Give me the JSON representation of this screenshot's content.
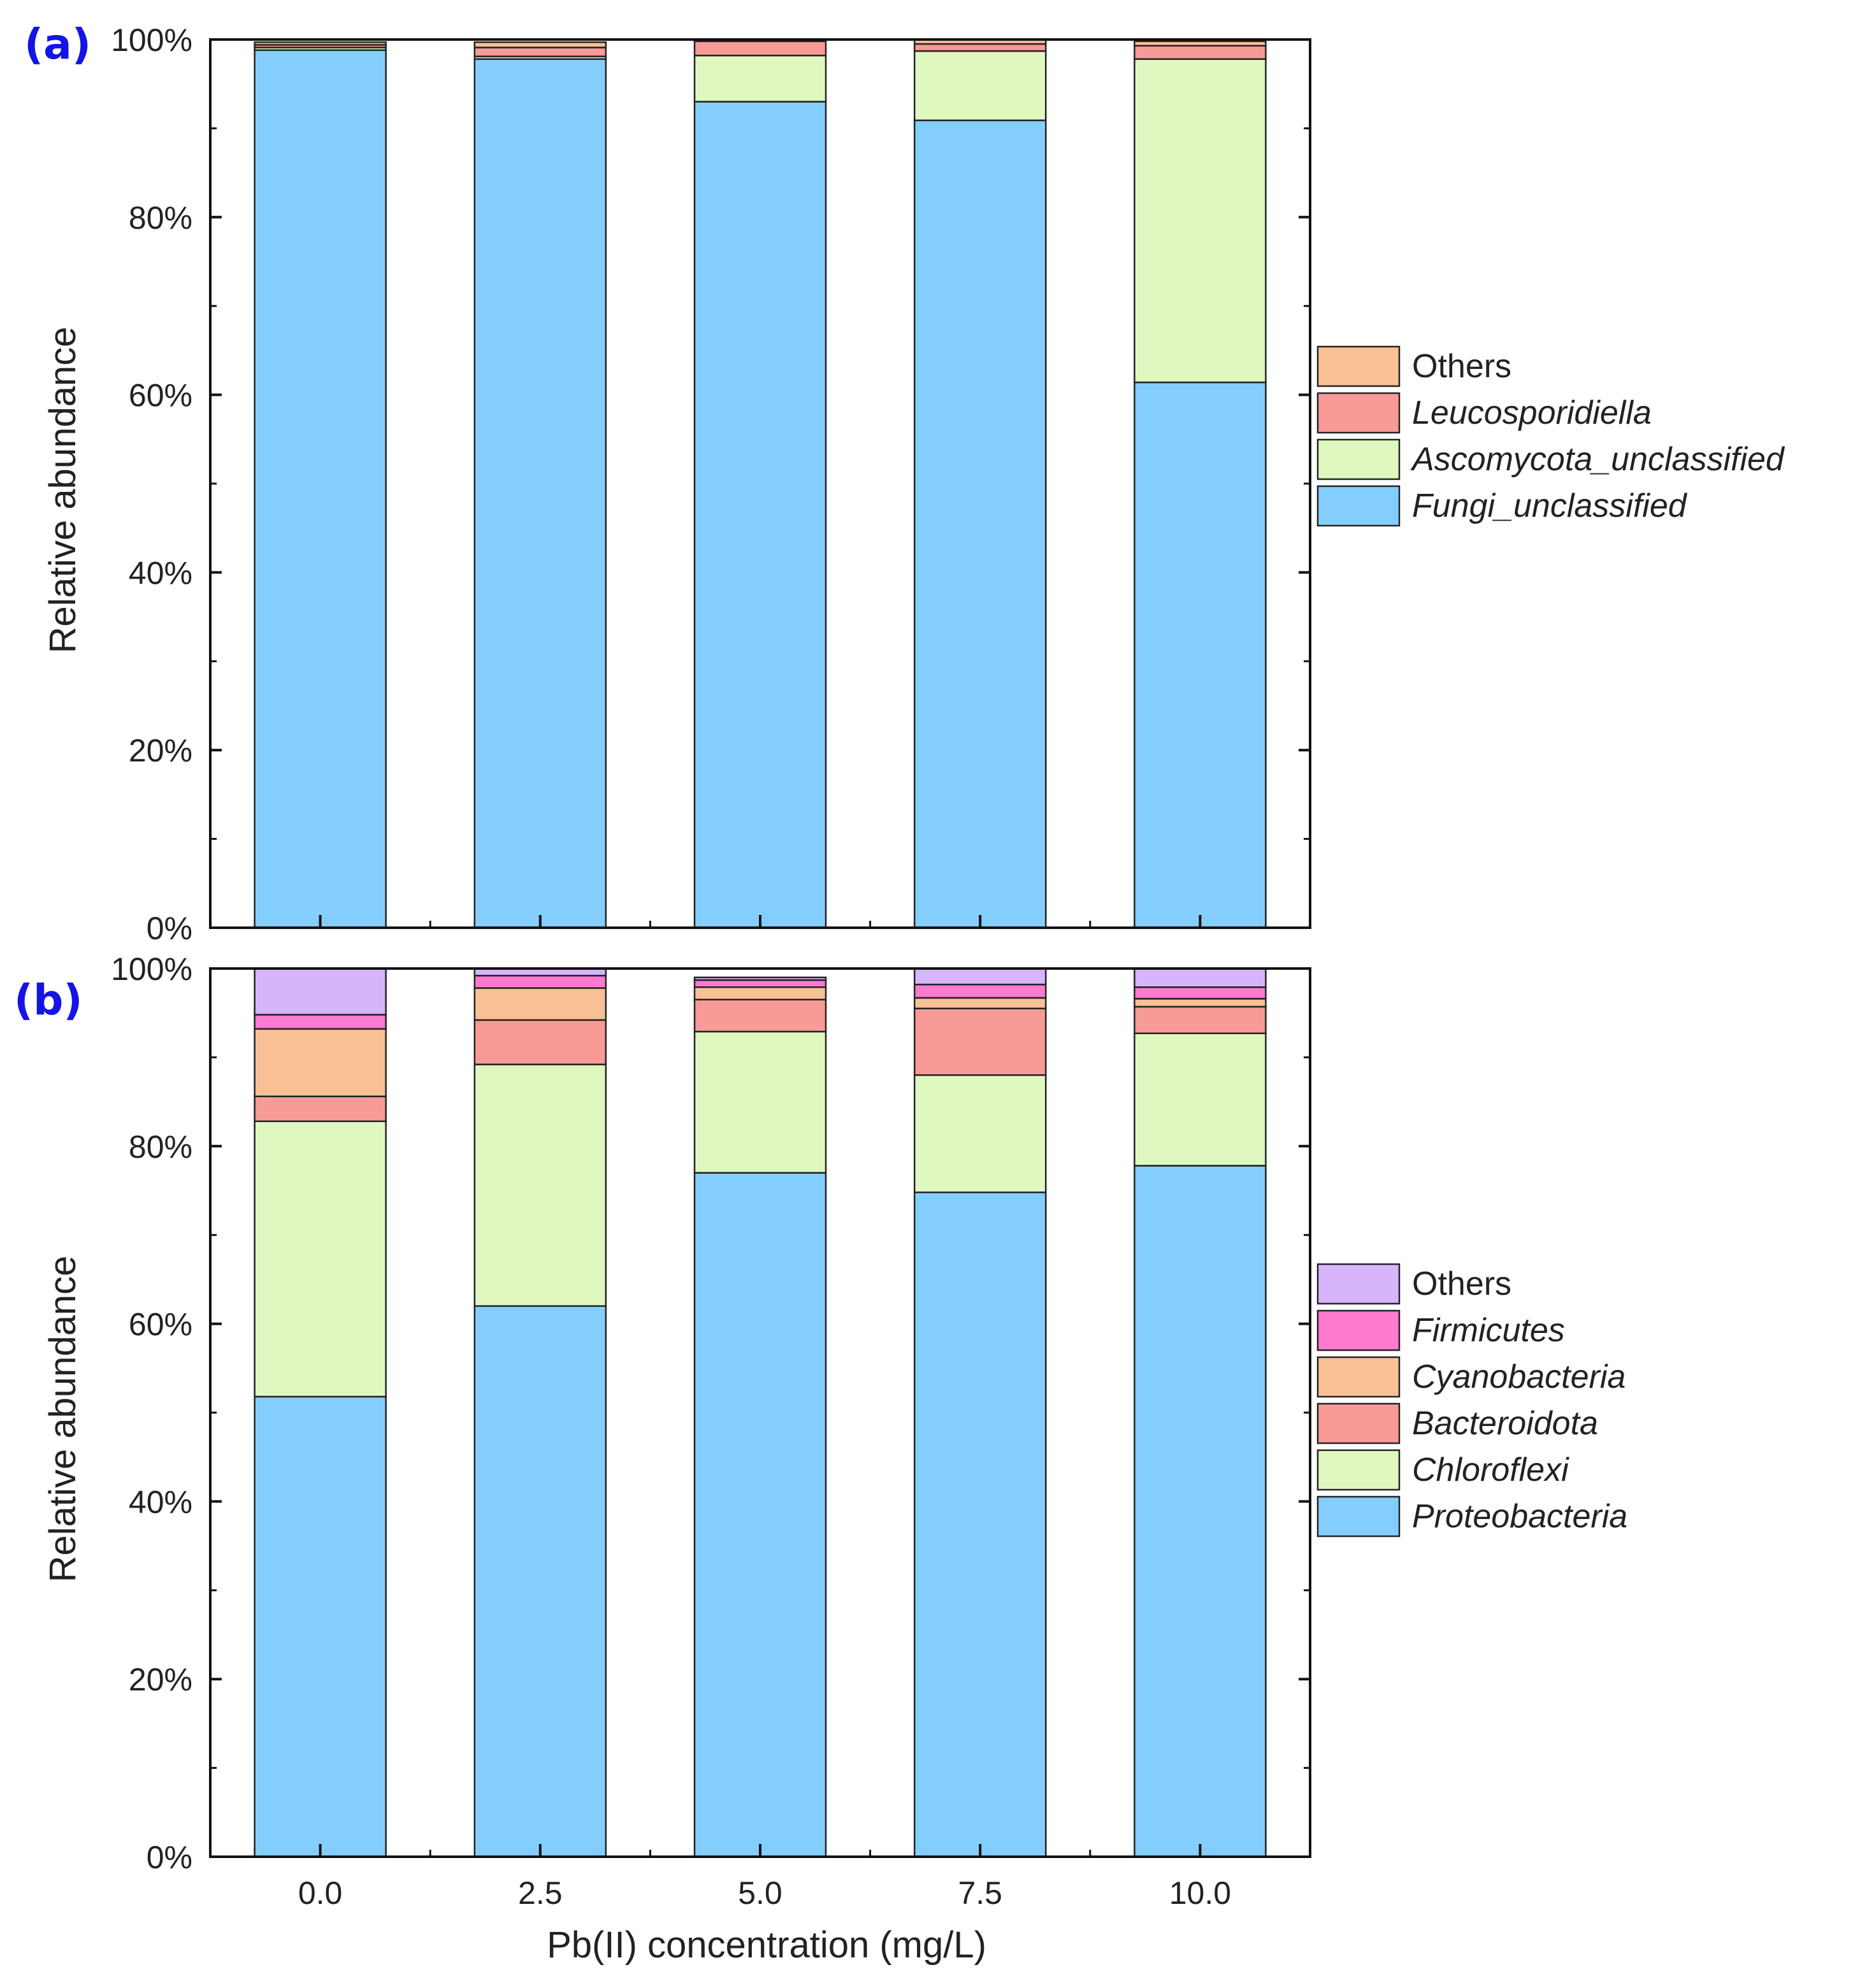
{
  "chart_data": [
    {
      "panel_label": "(a)",
      "type": "bar",
      "stacked": true,
      "x_ticks": [
        "0.0",
        "2.5",
        "5.0",
        "7.5",
        "10.0"
      ],
      "xlabel": "",
      "ylabel": "Relative abundance",
      "y_tick_labels": [
        "0%",
        "20%",
        "40%",
        "60%",
        "80%",
        "100%"
      ],
      "ylim": [
        0,
        100
      ],
      "grid": false,
      "legend_position": "right",
      "series": [
        {
          "name": "Fungi_unclassified",
          "color": "#84cefe",
          "values": [
            98.8,
            97.8,
            93.0,
            90.9,
            61.4
          ]
        },
        {
          "name": "Ascomycota_unclassified",
          "color": "#e0f8c0",
          "values": [
            0.3,
            0.3,
            5.2,
            7.8,
            36.4
          ]
        },
        {
          "name": "Leucosporidiella",
          "color": "#f89a96",
          "values": [
            0.3,
            1.0,
            1.6,
            0.8,
            1.5
          ]
        },
        {
          "name": "Others",
          "color": "#f8c094",
          "values": [
            0.3,
            0.6,
            0.2,
            0.5,
            0.5
          ]
        }
      ]
    },
    {
      "panel_label": "(b)",
      "type": "bar",
      "stacked": true,
      "x_ticks": [
        "0.0",
        "2.5",
        "5.0",
        "7.5",
        "10.0"
      ],
      "xlabel": "Pb(II) concentration (mg/L)",
      "ylabel": "Relative abundance",
      "y_tick_labels": [
        "0%",
        "20%",
        "40%",
        "60%",
        "80%",
        "100%"
      ],
      "ylim": [
        0,
        100
      ],
      "grid": false,
      "legend_position": "right",
      "series": [
        {
          "name": "Proteobacteria",
          "color": "#84cefe",
          "values": [
            51.8,
            62.0,
            77.0,
            74.8,
            77.8
          ]
        },
        {
          "name": "Chloroflexi",
          "color": "#e0f8c0",
          "values": [
            31.0,
            27.2,
            15.9,
            13.2,
            14.9
          ]
        },
        {
          "name": "Bacteroidota",
          "color": "#f89a96",
          "values": [
            2.8,
            5.0,
            3.6,
            7.5,
            3.0
          ]
        },
        {
          "name": "Cyanobacteria",
          "color": "#f8c094",
          "values": [
            7.6,
            3.6,
            1.4,
            1.2,
            0.9
          ]
        },
        {
          "name": "Firmicutes",
          "color": "#fd7ad0",
          "values": [
            1.6,
            1.4,
            0.8,
            1.5,
            1.3
          ]
        },
        {
          "name": "Others",
          "color": "#d8b4fc",
          "values": [
            5.2,
            0.8,
            0.3,
            1.8,
            2.1
          ]
        }
      ]
    }
  ]
}
